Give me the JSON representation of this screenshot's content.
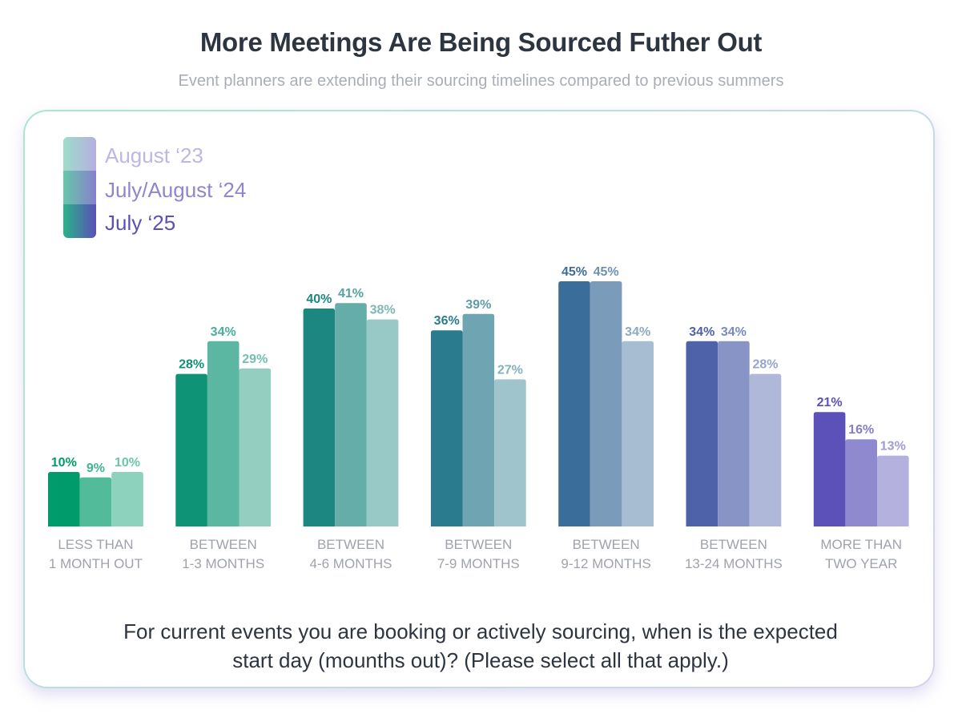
{
  "page": {
    "title": "More Meetings Are Being Sourced Futher Out",
    "subtitle": "Event planners are extending their sourcing timelines compared to previous summers",
    "question_line1": "For current events you are booking or actively sourcing, when is the expected",
    "question_line2": "start day (mounths out)? (Please select all that apply.)"
  },
  "legend": [
    {
      "label": "August ‘23",
      "color": "#bdb6e6"
    },
    {
      "label": "July/August ‘24",
      "color": "#8f86cc"
    },
    {
      "label": "July ‘25",
      "color": "#5b51b2"
    }
  ],
  "chart_data": {
    "type": "bar",
    "title": "More Meetings Are Being Sourced Futher Out",
    "subtitle": "Event planners are extending their sourcing timelines compared to previous summers",
    "categories": [
      [
        "LESS THAN",
        "1 MONTH OUT"
      ],
      [
        "BETWEEN",
        "1-3 MONTHS"
      ],
      [
        "BETWEEN",
        "4-6 MONTHS"
      ],
      [
        "BETWEEN",
        "7-9 MONTHS"
      ],
      [
        "BETWEEN",
        "9-12 MONTHS"
      ],
      [
        "BETWEEN",
        "13-24 MONTHS"
      ],
      [
        "MORE THAN",
        "TWO YEAR"
      ]
    ],
    "series": [
      {
        "name": "July ‘25",
        "values": [
          10,
          28,
          40,
          36,
          45,
          34,
          21
        ]
      },
      {
        "name": "July/August ‘24",
        "values": [
          9,
          34,
          41,
          39,
          45,
          34,
          16
        ]
      },
      {
        "name": "August ‘23",
        "values": [
          10,
          29,
          38,
          27,
          34,
          28,
          13
        ]
      }
    ],
    "value_suffix": "%",
    "ylim": [
      0,
      50
    ],
    "grid": false,
    "legend_position": "top-left",
    "colors": {
      "category_base": [
        "#009b6b",
        "#0e9376",
        "#1c8680",
        "#2b7b8e",
        "#3b6d9a",
        "#4e62aa",
        "#5b51b8"
      ]
    }
  }
}
